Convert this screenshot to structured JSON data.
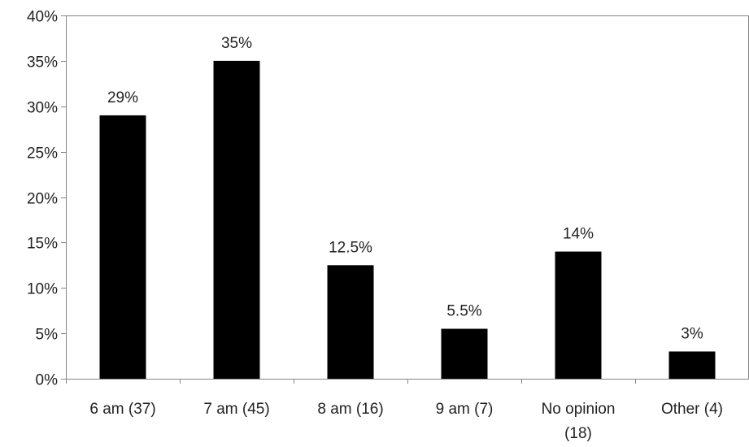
{
  "chart_data": {
    "type": "bar",
    "categories": [
      [
        "6 am (37)"
      ],
      [
        "7 am (45)"
      ],
      [
        "8 am (16)"
      ],
      [
        "9 am (7)"
      ],
      [
        "No opinion",
        "(18)"
      ],
      [
        "Other (4)"
      ]
    ],
    "values": [
      29,
      35,
      12.5,
      5.5,
      14,
      3
    ],
    "data_labels": [
      "29%",
      "35%",
      "12.5%",
      "5.5%",
      "14%",
      "3%"
    ],
    "ylim": [
      0,
      40
    ],
    "yticks": [
      0,
      5,
      10,
      15,
      20,
      25,
      30,
      35,
      40
    ],
    "ytick_labels": [
      "0%",
      "5%",
      "10%",
      "15%",
      "20%",
      "25%",
      "30%",
      "35%",
      "40%"
    ],
    "title": "",
    "xlabel": "",
    "ylabel": "",
    "grid": false,
    "legend": "none",
    "bar_color": "#000000",
    "axis_color": "#868686"
  }
}
